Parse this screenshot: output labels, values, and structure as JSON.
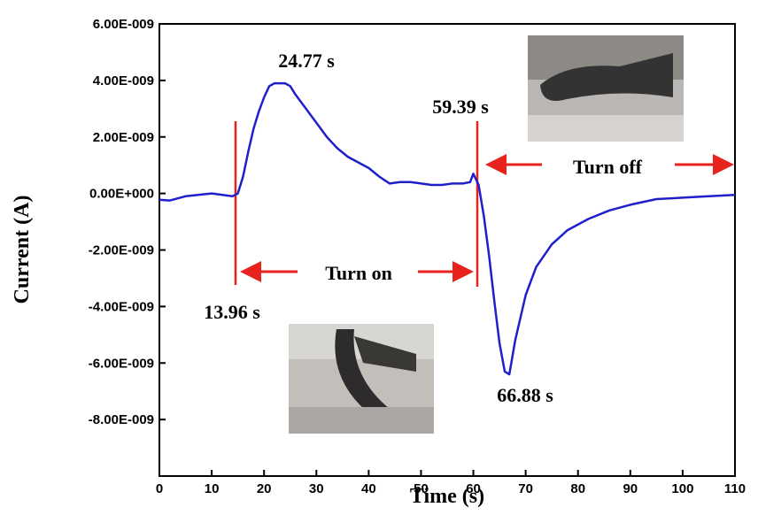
{
  "chart_data": {
    "type": "line",
    "x_label": "Time (s)",
    "y_label": "Current (A)",
    "xlim": [
      0,
      110
    ],
    "xticks": [
      0,
      10,
      20,
      30,
      40,
      50,
      60,
      70,
      80,
      90,
      100,
      110
    ],
    "ylim": [
      -1e-08,
      6e-09
    ],
    "yticks": [
      {
        "value": 6e-09,
        "label": "6.00E-009"
      },
      {
        "value": 4e-09,
        "label": "4.00E-009"
      },
      {
        "value": 2e-09,
        "label": "2.00E-009"
      },
      {
        "value": 0,
        "label": "0.00E+000"
      },
      {
        "value": -2e-09,
        "label": "-2.00E-009"
      },
      {
        "value": -4e-09,
        "label": "-4.00E-009"
      },
      {
        "value": -6e-09,
        "label": "-6.00E-009"
      },
      {
        "value": -8e-09,
        "label": "-8.00E-009"
      }
    ],
    "color": "#1f1fcc",
    "x": [
      0,
      2,
      5,
      10,
      13.96,
      15,
      16,
      17,
      18,
      19,
      20,
      21,
      22,
      24,
      25,
      26,
      28,
      30,
      32,
      34,
      36,
      38,
      40,
      42,
      44,
      46,
      48,
      50,
      52,
      54,
      56,
      58,
      59.39,
      60,
      61,
      62,
      63,
      64,
      65,
      66,
      66.88,
      68,
      70,
      72,
      75,
      78,
      82,
      86,
      90,
      95,
      100,
      105,
      110
    ],
    "values": [
      -2.2e-10,
      -2.5e-10,
      -1e-10,
      0,
      -1e-10,
      0,
      6e-10,
      1.5e-09,
      2.3e-09,
      2.9e-09,
      3.4e-09,
      3.8e-09,
      3.9e-09,
      3.9e-09,
      3.8e-09,
      3.5e-09,
      3e-09,
      2.5e-09,
      2e-09,
      1.6e-09,
      1.3e-09,
      1.1e-09,
      9e-10,
      6e-10,
      3.5e-10,
      4e-10,
      4e-10,
      3.5e-10,
      3e-10,
      3e-10,
      3.5e-10,
      3.5e-10,
      4e-10,
      7e-10,
      3e-10,
      -8e-10,
      -2.2e-09,
      -3.8e-09,
      -5.3e-09,
      -6.3e-09,
      -6.4e-09,
      -5.2e-09,
      -3.6e-09,
      -2.6e-09,
      -1.8e-09,
      -1.3e-09,
      -9e-10,
      -6e-10,
      -4e-10,
      -2e-10,
      -1.5e-10,
      -1e-10,
      -5e-11
    ],
    "annotations": [
      "24.77 s",
      "59.39 s",
      "13.96 s",
      "66.88 s",
      "Turn on",
      "Turn off"
    ]
  }
}
